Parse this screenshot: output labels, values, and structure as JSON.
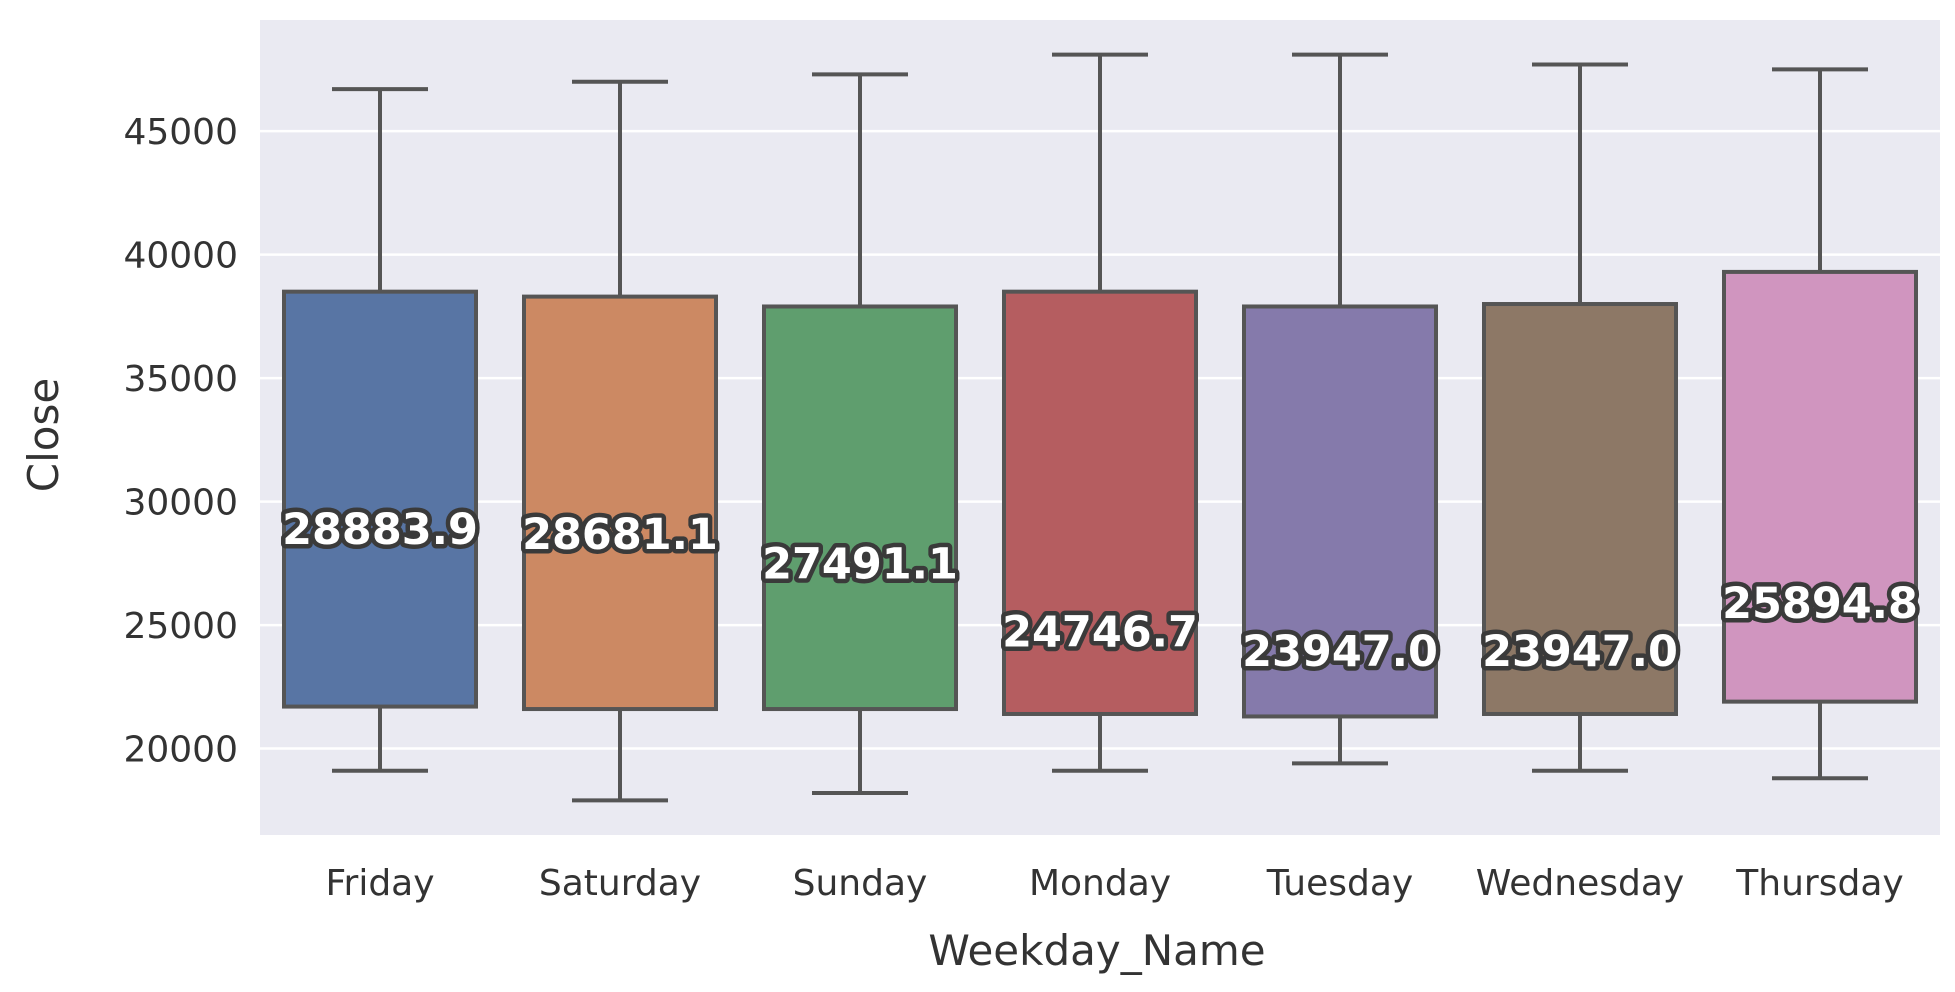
{
  "chart_data": {
    "type": "box",
    "xlabel": "Weekday_Name",
    "ylabel": "Close",
    "ylim": [
      16500,
      49500
    ],
    "yticks": [
      20000,
      25000,
      30000,
      35000,
      40000,
      45000
    ],
    "ytick_labels": [
      "20000",
      "25000",
      "30000",
      "35000",
      "40000",
      "45000"
    ],
    "grid": true,
    "categories": [
      "Friday",
      "Saturday",
      "Sunday",
      "Monday",
      "Tuesday",
      "Wednesday",
      "Thursday"
    ],
    "boxes": [
      {
        "whisker_low": 19100,
        "q1": 21700,
        "q3": 38500,
        "whisker_high": 46700,
        "median_label": "28883.9",
        "color": "#5875a4"
      },
      {
        "whisker_low": 17900,
        "q1": 21600,
        "q3": 38300,
        "whisker_high": 47000,
        "median_label": "28681.1",
        "color": "#cc8963"
      },
      {
        "whisker_low": 18200,
        "q1": 21600,
        "q3": 37900,
        "whisker_high": 47300,
        "median_label": "27491.1",
        "color": "#5f9e6e"
      },
      {
        "whisker_low": 19100,
        "q1": 21400,
        "q3": 38500,
        "whisker_high": 48100,
        "median_label": "24746.7",
        "color": "#b55d60"
      },
      {
        "whisker_low": 19400,
        "q1": 21300,
        "q3": 37900,
        "whisker_high": 48100,
        "median_label": "23947.0",
        "color": "#857aab"
      },
      {
        "whisker_low": 19100,
        "q1": 21400,
        "q3": 38000,
        "whisker_high": 47700,
        "median_label": "23947.0",
        "color": "#8d7866"
      },
      {
        "whisker_low": 18800,
        "q1": 21900,
        "q3": 39300,
        "whisker_high": 47500,
        "median_label": "25894.8",
        "color": "#d095bf"
      }
    ],
    "colors": {
      "plot_background": "#eaeaf2",
      "grid": "#ffffff",
      "box_edge": "#555555"
    }
  }
}
